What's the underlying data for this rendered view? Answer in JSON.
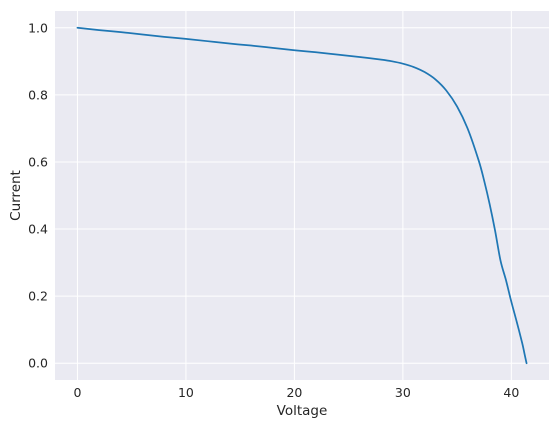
{
  "chart_data": {
    "type": "line",
    "title": "",
    "xlabel": "Voltage",
    "ylabel": "Current",
    "xlim": [
      -2.07,
      43.47
    ],
    "ylim": [
      -0.05,
      1.05
    ],
    "xticks": [
      0,
      10,
      20,
      30,
      40
    ],
    "yticks": [
      0.0,
      0.2,
      0.4,
      0.6,
      0.8,
      1.0
    ],
    "xtick_labels": [
      "0",
      "10",
      "20",
      "30",
      "40"
    ],
    "ytick_labels": [
      "0.0",
      "0.2",
      "0.4",
      "0.6",
      "0.8",
      "1.0"
    ],
    "grid": true,
    "legend": "none",
    "colors": {
      "background": "#eaeaf2",
      "grid": "#ffffff",
      "line": "#1f77b4",
      "text": "#262626"
    },
    "series": [
      {
        "x": [
          0,
          2,
          4,
          6,
          8,
          10,
          12,
          14,
          16,
          18,
          20,
          22,
          24,
          26,
          28,
          29,
          30,
          31,
          32,
          33,
          34,
          35,
          36,
          37,
          37.5,
          38,
          38.5,
          39,
          39.5,
          40,
          40.5,
          41,
          41.2,
          41.4
        ],
        "y": [
          1.0,
          0.993,
          0.987,
          0.98,
          0.973,
          0.967,
          0.96,
          0.953,
          0.947,
          0.94,
          0.933,
          0.927,
          0.92,
          0.913,
          0.905,
          0.9,
          0.893,
          0.883,
          0.868,
          0.846,
          0.813,
          0.765,
          0.697,
          0.603,
          0.543,
          0.474,
          0.395,
          0.306,
          0.248,
          0.183,
          0.123,
          0.06,
          0.03,
          0.0
        ]
      }
    ]
  }
}
